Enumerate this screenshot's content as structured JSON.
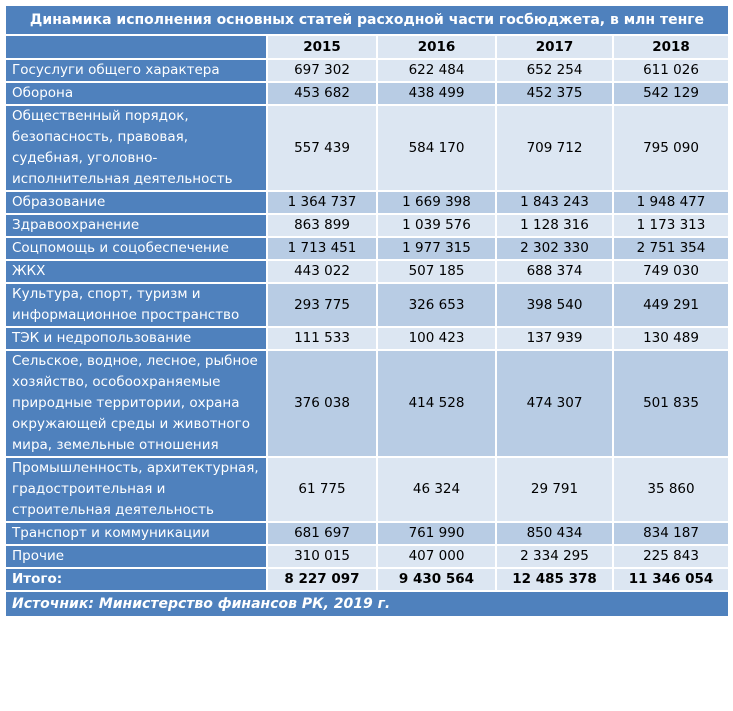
{
  "title": "Динамика исполнения основных статей расходной части госбюджета, в млн тенге",
  "years": [
    "2015",
    "2016",
    "2017",
    "2018"
  ],
  "rows": [
    {
      "label": "Госуслуги общего характера",
      "values": [
        "697 302",
        "622 484",
        "652 254",
        "611 026"
      ]
    },
    {
      "label": "Оборона",
      "values": [
        "453 682",
        "438 499",
        "452 375",
        "542 129"
      ]
    },
    {
      "label": "Общественный порядок, безопасность, правовая, судебная, уголовно-исполнительная деятельность",
      "values": [
        "557 439",
        "584 170",
        "709 712",
        "795 090"
      ]
    },
    {
      "label": "Образование",
      "values": [
        "1 364 737",
        "1 669 398",
        "1 843 243",
        "1 948 477"
      ]
    },
    {
      "label": "Здравоохранение",
      "values": [
        "863 899",
        "1 039 576",
        "1 128 316",
        "1 173 313"
      ]
    },
    {
      "label": "Соцпомощь и соцобеспечение",
      "values": [
        "1 713 451",
        "1 977 315",
        "2 302 330",
        "2 751 354"
      ]
    },
    {
      "label": "ЖКХ",
      "values": [
        "443 022",
        "507 185",
        "688 374",
        "749 030"
      ]
    },
    {
      "label": "Культура, спорт, туризм и информационное пространство",
      "values": [
        "293 775",
        "326 653",
        "398 540",
        "449 291"
      ]
    },
    {
      "label": "ТЭК и недропользование",
      "values": [
        "111 533",
        "100 423",
        "137 939",
        "130 489"
      ]
    },
    {
      "label": "Сельское, водное, лесное, рыбное хозяйство, особоохраняемые природные территории, охрана окружающей среды и животного мира, земельные отношения",
      "values": [
        "376 038",
        "414 528",
        "474 307",
        "501 835"
      ]
    },
    {
      "label": "Промышленность, архитектурная, градостроительная и строительная деятельность",
      "values": [
        "61 775",
        "46 324",
        "29 791",
        "35 860"
      ]
    },
    {
      "label": "Транспорт и коммуникации",
      "values": [
        "681 697",
        "761 990",
        "850 434",
        "834 187"
      ]
    },
    {
      "label": "Прочие",
      "values": [
        "310 015",
        "407 000",
        "2 334 295",
        "225 843"
      ]
    }
  ],
  "total": {
    "label": "Итого:",
    "values": [
      "8 227 097",
      "9 430 564",
      "12 485 378",
      "11 346 054"
    ]
  },
  "source": "Источник: Министерство финансов РК, 2019 г.",
  "colors": {
    "header_blue": "#4f81bd",
    "light_band": "#dce6f2",
    "dark_band": "#b8cce4"
  }
}
